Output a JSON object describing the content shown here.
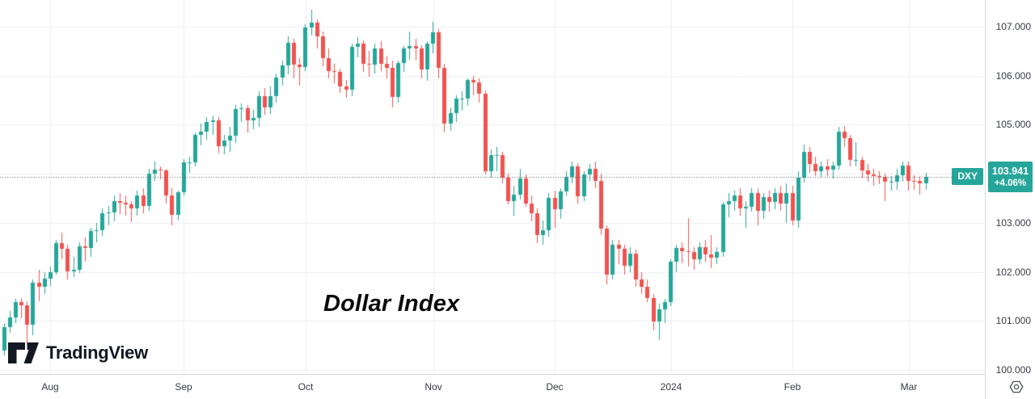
{
  "branding": {
    "name": "TradingView"
  },
  "chart_data": {
    "type": "candlestick",
    "symbol": "DXY",
    "title": "Dollar Index",
    "last_price": 103.941,
    "last_price_text": "103.941",
    "change_percent": "+4.06%",
    "up_color": "#26a69a",
    "down_color": "#ef5350",
    "grid": true,
    "y_axis": {
      "min": 100,
      "max": 107,
      "step": 1,
      "visible_ticks": [
        {
          "label": "107.000",
          "value": 107
        },
        {
          "label": "106.000",
          "value": 106
        },
        {
          "label": "105.000",
          "value": 105
        },
        {
          "label": "103.000",
          "value": 103
        },
        {
          "label": "102.000",
          "value": 102
        },
        {
          "label": "101.000",
          "value": 101
        },
        {
          "label": "100.000",
          "value": 100
        }
      ]
    },
    "x_axis_labels": [
      {
        "label": "Aug",
        "index": 8
      },
      {
        "label": "Sep",
        "index": 31
      },
      {
        "label": "Oct",
        "index": 52
      },
      {
        "label": "Nov",
        "index": 74
      },
      {
        "label": "Dec",
        "index": 95
      },
      {
        "label": "2024",
        "index": 115
      },
      {
        "label": "Feb",
        "index": 136
      },
      {
        "label": "Mar",
        "index": 156
      }
    ],
    "candles": [
      [
        100.4,
        100.95,
        100.3,
        100.87
      ],
      [
        100.87,
        101.2,
        100.75,
        101.07
      ],
      [
        101.07,
        101.45,
        100.95,
        101.38
      ],
      [
        101.38,
        101.47,
        101.05,
        101.31
      ],
      [
        101.31,
        101.4,
        100.55,
        100.92
      ],
      [
        100.92,
        101.84,
        100.7,
        101.78
      ],
      [
        101.78,
        102.05,
        101.4,
        101.7
      ],
      [
        101.7,
        102.0,
        101.55,
        101.86
      ],
      [
        101.86,
        102.1,
        101.72,
        102.0
      ],
      [
        102.0,
        102.65,
        101.95,
        102.59
      ],
      [
        102.59,
        102.8,
        102.25,
        102.47
      ],
      [
        102.47,
        102.55,
        101.85,
        102.01
      ],
      [
        102.01,
        102.3,
        101.9,
        102.05
      ],
      [
        102.05,
        102.6,
        101.98,
        102.52
      ],
      [
        102.52,
        102.7,
        102.2,
        102.49
      ],
      [
        102.49,
        102.9,
        102.3,
        102.84
      ],
      [
        102.84,
        103.0,
        102.6,
        102.85
      ],
      [
        102.85,
        103.3,
        102.73,
        103.2
      ],
      [
        103.2,
        103.35,
        102.95,
        103.21
      ],
      [
        103.21,
        103.55,
        103.03,
        103.45
      ],
      [
        103.45,
        103.6,
        103.18,
        103.41
      ],
      [
        103.41,
        103.55,
        103.15,
        103.38
      ],
      [
        103.38,
        103.45,
        103.02,
        103.3
      ],
      [
        103.3,
        103.65,
        103.15,
        103.56
      ],
      [
        103.56,
        103.7,
        103.2,
        103.34
      ],
      [
        103.34,
        104.1,
        103.25,
        104.01
      ],
      [
        104.01,
        104.25,
        103.85,
        104.08
      ],
      [
        104.08,
        104.15,
        103.88,
        104.06
      ],
      [
        104.06,
        104.1,
        103.4,
        103.55
      ],
      [
        103.55,
        103.7,
        102.95,
        103.17
      ],
      [
        103.17,
        103.65,
        103.04,
        103.62
      ],
      [
        103.62,
        104.3,
        103.55,
        104.24
      ],
      [
        104.24,
        104.35,
        104.02,
        104.24
      ],
      [
        104.24,
        104.85,
        104.15,
        104.8
      ],
      [
        104.8,
        105.02,
        104.58,
        104.86
      ],
      [
        104.86,
        105.15,
        104.7,
        105.05
      ],
      [
        105.05,
        105.18,
        104.8,
        105.09
      ],
      [
        105.09,
        105.15,
        104.42,
        104.57
      ],
      [
        104.57,
        104.8,
        104.4,
        104.67
      ],
      [
        104.67,
        104.95,
        104.45,
        104.78
      ],
      [
        104.78,
        105.4,
        104.63,
        105.32
      ],
      [
        105.32,
        105.43,
        105.05,
        105.33
      ],
      [
        105.33,
        105.4,
        104.85,
        105.09
      ],
      [
        105.09,
        105.3,
        104.9,
        105.14
      ],
      [
        105.14,
        105.68,
        104.95,
        105.59
      ],
      [
        105.59,
        105.75,
        105.2,
        105.36
      ],
      [
        105.36,
        105.78,
        105.22,
        105.58
      ],
      [
        105.58,
        106.05,
        105.45,
        105.96
      ],
      [
        105.96,
        106.3,
        105.8,
        106.21
      ],
      [
        106.21,
        106.8,
        106.02,
        106.67
      ],
      [
        106.67,
        106.75,
        105.95,
        106.22
      ],
      [
        106.22,
        106.35,
        105.8,
        106.17
      ],
      [
        106.17,
        107.05,
        106.1,
        106.98
      ],
      [
        106.98,
        107.35,
        106.82,
        107.08
      ],
      [
        107.08,
        107.15,
        106.55,
        106.8
      ],
      [
        106.8,
        106.9,
        106.2,
        106.35
      ],
      [
        106.35,
        106.55,
        105.95,
        106.1
      ],
      [
        106.1,
        106.25,
        105.85,
        106.07
      ],
      [
        106.07,
        106.15,
        105.65,
        105.78
      ],
      [
        105.78,
        105.92,
        105.55,
        105.72
      ],
      [
        105.72,
        106.65,
        105.58,
        106.58
      ],
      [
        106.58,
        106.78,
        106.38,
        106.65
      ],
      [
        106.65,
        106.72,
        106.08,
        106.24
      ],
      [
        106.24,
        106.5,
        105.98,
        106.23
      ],
      [
        106.23,
        106.65,
        106.05,
        106.56
      ],
      [
        106.56,
        106.7,
        106.1,
        106.25
      ],
      [
        106.25,
        106.4,
        105.95,
        106.16
      ],
      [
        106.16,
        106.3,
        105.35,
        105.56
      ],
      [
        105.56,
        106.3,
        105.45,
        106.26
      ],
      [
        106.26,
        106.6,
        106.08,
        106.55
      ],
      [
        106.55,
        106.9,
        106.33,
        106.6
      ],
      [
        106.6,
        106.75,
        106.3,
        106.56
      ],
      [
        106.56,
        106.62,
        105.95,
        106.12
      ],
      [
        106.12,
        106.7,
        105.9,
        106.66
      ],
      [
        106.66,
        107.1,
        106.45,
        106.88
      ],
      [
        106.88,
        106.95,
        105.95,
        106.16
      ],
      [
        106.16,
        106.25,
        104.85,
        105.02
      ],
      [
        105.02,
        105.35,
        104.88,
        105.24
      ],
      [
        105.24,
        105.6,
        105.05,
        105.53
      ],
      [
        105.53,
        105.68,
        105.28,
        105.53
      ],
      [
        105.53,
        105.95,
        105.38,
        105.91
      ],
      [
        105.91,
        106.0,
        105.6,
        105.86
      ],
      [
        105.86,
        105.95,
        105.45,
        105.63
      ],
      [
        105.63,
        105.7,
        103.98,
        104.05
      ],
      [
        104.05,
        104.5,
        103.92,
        104.38
      ],
      [
        104.38,
        104.55,
        104.05,
        104.38
      ],
      [
        104.38,
        104.45,
        103.8,
        103.92
      ],
      [
        103.92,
        104.0,
        103.38,
        103.44
      ],
      [
        103.44,
        103.75,
        103.15,
        103.58
      ],
      [
        103.58,
        104.1,
        103.48,
        103.91
      ],
      [
        103.91,
        103.98,
        103.32,
        103.4
      ],
      [
        103.4,
        103.55,
        103.03,
        103.2
      ],
      [
        103.2,
        103.3,
        102.58,
        102.75
      ],
      [
        102.75,
        103.05,
        102.55,
        102.85
      ],
      [
        102.85,
        103.6,
        102.72,
        103.5
      ],
      [
        103.5,
        103.65,
        102.9,
        103.27
      ],
      [
        103.27,
        103.7,
        103.08,
        103.64
      ],
      [
        103.64,
        104.05,
        103.55,
        103.93
      ],
      [
        103.93,
        104.25,
        103.8,
        104.15
      ],
      [
        104.15,
        104.22,
        103.4,
        103.54
      ],
      [
        103.54,
        104.05,
        103.45,
        103.98
      ],
      [
        103.98,
        104.2,
        103.85,
        104.1
      ],
      [
        104.1,
        104.25,
        103.7,
        103.85
      ],
      [
        103.85,
        104.0,
        102.75,
        102.88
      ],
      [
        102.88,
        102.95,
        101.75,
        101.94
      ],
      [
        101.94,
        102.65,
        101.85,
        102.55
      ],
      [
        102.55,
        102.65,
        102.15,
        102.47
      ],
      [
        102.47,
        102.55,
        101.95,
        102.12
      ],
      [
        102.12,
        102.5,
        102.0,
        102.37
      ],
      [
        102.37,
        102.45,
        101.7,
        101.84
      ],
      [
        101.84,
        102.0,
        101.55,
        101.7
      ],
      [
        101.7,
        101.85,
        101.38,
        101.47
      ],
      [
        101.47,
        101.55,
        100.8,
        100.98
      ],
      [
        100.98,
        101.35,
        100.61,
        101.23
      ],
      [
        101.23,
        101.45,
        100.95,
        101.38
      ],
      [
        101.38,
        102.25,
        101.3,
        102.2
      ],
      [
        102.2,
        102.55,
        102.0,
        102.49
      ],
      [
        102.49,
        102.6,
        102.18,
        102.42
      ],
      [
        102.42,
        103.1,
        102.1,
        102.4
      ],
      [
        102.4,
        102.5,
        102.05,
        102.25
      ],
      [
        102.25,
        102.6,
        102.15,
        102.51
      ],
      [
        102.51,
        102.65,
        102.2,
        102.36
      ],
      [
        102.36,
        102.75,
        102.08,
        102.29
      ],
      [
        102.29,
        102.5,
        102.15,
        102.4
      ],
      [
        102.4,
        103.42,
        102.3,
        103.37
      ],
      [
        103.37,
        103.6,
        103.12,
        103.45
      ],
      [
        103.45,
        103.65,
        103.25,
        103.55
      ],
      [
        103.55,
        103.7,
        103.15,
        103.29
      ],
      [
        103.29,
        103.45,
        102.9,
        103.33
      ],
      [
        103.33,
        103.7,
        103.22,
        103.61
      ],
      [
        103.61,
        103.7,
        102.95,
        103.24
      ],
      [
        103.24,
        103.6,
        103.08,
        103.52
      ],
      [
        103.52,
        103.65,
        103.23,
        103.43
      ],
      [
        103.43,
        103.7,
        103.28,
        103.6
      ],
      [
        103.6,
        103.75,
        103.25,
        103.4
      ],
      [
        103.4,
        103.8,
        103.0,
        103.61
      ],
      [
        103.61,
        103.75,
        102.95,
        103.05
      ],
      [
        103.05,
        104.05,
        102.9,
        103.92
      ],
      [
        103.92,
        104.6,
        103.82,
        104.45
      ],
      [
        104.45,
        104.55,
        104.02,
        104.2
      ],
      [
        104.2,
        104.35,
        103.95,
        104.05
      ],
      [
        104.05,
        104.25,
        103.93,
        104.15
      ],
      [
        104.15,
        104.3,
        103.95,
        104.08
      ],
      [
        104.08,
        104.25,
        103.9,
        104.17
      ],
      [
        104.17,
        104.96,
        104.08,
        104.86
      ],
      [
        104.86,
        104.98,
        104.55,
        104.72
      ],
      [
        104.72,
        104.8,
        104.15,
        104.28
      ],
      [
        104.28,
        104.65,
        104.15,
        104.28
      ],
      [
        104.28,
        104.35,
        103.92,
        104.07
      ],
      [
        104.07,
        104.2,
        103.83,
        103.99
      ],
      [
        103.99,
        104.1,
        103.75,
        103.96
      ],
      [
        103.96,
        104.05,
        103.78,
        103.94
      ],
      [
        103.94,
        104.0,
        103.45,
        103.83
      ],
      [
        103.83,
        103.95,
        103.65,
        103.83
      ],
      [
        103.83,
        104.1,
        103.68,
        103.97
      ],
      [
        103.97,
        104.25,
        103.83,
        104.16
      ],
      [
        104.16,
        104.25,
        103.65,
        103.86
      ],
      [
        103.86,
        103.97,
        103.68,
        103.85
      ],
      [
        103.85,
        103.95,
        103.58,
        103.8
      ],
      [
        103.8,
        104.02,
        103.68,
        103.94
      ]
    ]
  }
}
